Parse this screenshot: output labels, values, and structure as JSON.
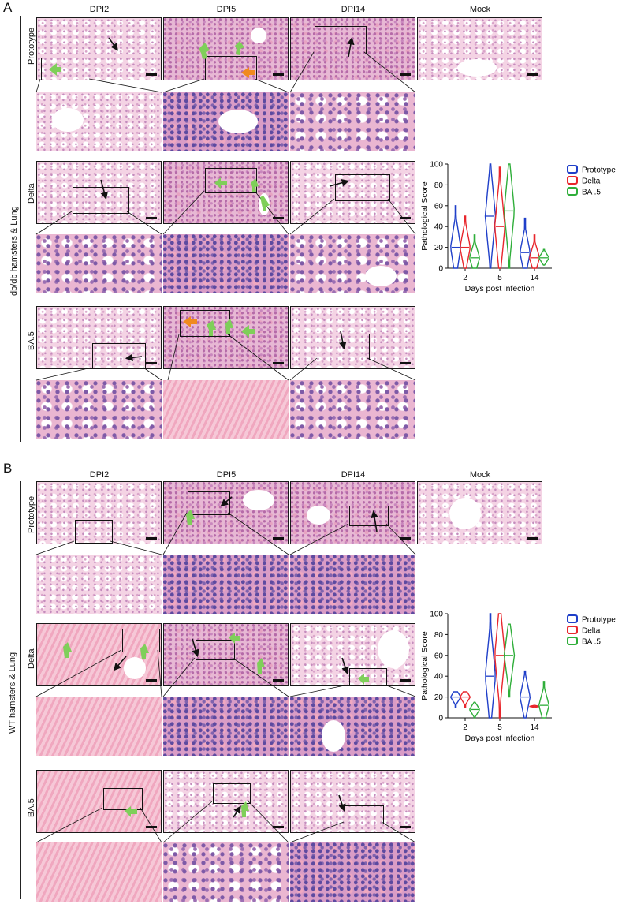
{
  "panels": [
    {
      "letter": "A",
      "side_label": "db/db hamsters & Lung",
      "columns": [
        "DPI2",
        "DPI5",
        "DPI14",
        "Mock"
      ],
      "rows": [
        "Prototype",
        "Delta",
        "BA.5"
      ]
    },
    {
      "letter": "B",
      "side_label": "WT hamsters & Lung",
      "columns": [
        "DPI2",
        "DPI5",
        "DPI14",
        "Mock"
      ],
      "rows": [
        "Prototype",
        "Delta",
        "BA.5"
      ]
    }
  ],
  "colors": {
    "Prototype": "#1f3fc9",
    "Delta": "#e8262c",
    "BA .5": "#2fae3a",
    "arrow_black": "#111111",
    "arrow_green": "#7fcf5a",
    "arrow_orange": "#f08a1e"
  },
  "chart_data": [
    {
      "type": "violin",
      "ylabel": "Pathological Score",
      "xlabel": "Days post infection",
      "categories": [
        "2",
        "5",
        "14"
      ],
      "ylim": [
        0,
        100
      ],
      "yticks": [
        0,
        20,
        40,
        60,
        80,
        100
      ],
      "legend": [
        "Prototype",
        "Delta",
        "BA .5"
      ],
      "series": [
        {
          "name": "Prototype",
          "values": [
            {
              "day": "2",
              "min": 0,
              "max": 60,
              "median": 20
            },
            {
              "day": "5",
              "min": 0,
              "max": 100,
              "median": 50
            },
            {
              "day": "14",
              "min": 0,
              "max": 48,
              "median": 15
            }
          ]
        },
        {
          "name": "Delta",
          "values": [
            {
              "day": "2",
              "min": 0,
              "max": 50,
              "median": 20
            },
            {
              "day": "5",
              "min": 0,
              "max": 97,
              "median": 40
            },
            {
              "day": "14",
              "min": 0,
              "max": 32,
              "median": 10
            }
          ]
        },
        {
          "name": "BA .5",
          "values": [
            {
              "day": "2",
              "min": 0,
              "max": 32,
              "median": 10
            },
            {
              "day": "5",
              "min": 0,
              "max": 100,
              "median": 55
            },
            {
              "day": "14",
              "min": 3,
              "max": 18,
              "median": 10
            }
          ]
        }
      ]
    },
    {
      "type": "violin",
      "ylabel": "Pathological Score",
      "xlabel": "Days post infection",
      "categories": [
        "2",
        "5",
        "14"
      ],
      "ylim": [
        0,
        100
      ],
      "yticks": [
        0,
        20,
        40,
        60,
        80,
        100
      ],
      "legend": [
        "Prototype",
        "Delta",
        "BA .5"
      ],
      "series": [
        {
          "name": "Prototype",
          "values": [
            {
              "day": "2",
              "min": 10,
              "max": 25,
              "median": 20
            },
            {
              "day": "5",
              "min": 0,
              "max": 100,
              "median": 40
            },
            {
              "day": "14",
              "min": 0,
              "max": 45,
              "median": 20
            }
          ]
        },
        {
          "name": "Delta",
          "values": [
            {
              "day": "2",
              "min": 10,
              "max": 25,
              "median": 20
            },
            {
              "day": "5",
              "min": 0,
              "max": 100,
              "median": 60
            },
            {
              "day": "14",
              "min": 10,
              "max": 12,
              "median": 11
            }
          ]
        },
        {
          "name": "BA .5",
          "values": [
            {
              "day": "2",
              "min": 0,
              "max": 15,
              "median": 8
            },
            {
              "day": "5",
              "min": 20,
              "max": 90,
              "median": 60
            },
            {
              "day": "14",
              "min": 0,
              "max": 35,
              "median": 12
            }
          ]
        }
      ]
    }
  ]
}
